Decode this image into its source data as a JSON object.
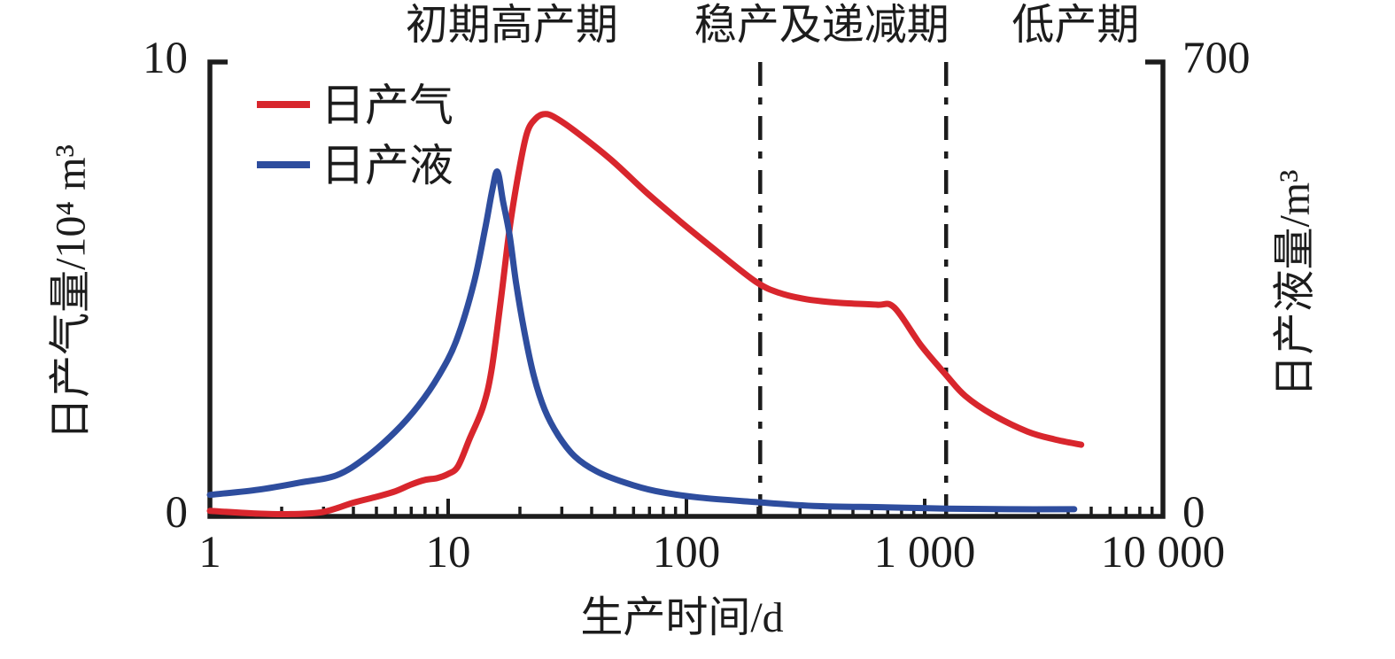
{
  "chart_data": {
    "type": "line",
    "title": "",
    "x_axis": {
      "label": "生产时间/d",
      "scale": "log",
      "range": [
        1,
        10000
      ],
      "tick_values": [
        1,
        10,
        100,
        1000,
        10000
      ],
      "tick_labels": [
        "1",
        "10",
        "100",
        "1 000",
        "10 000"
      ],
      "grid": false
    },
    "y_axis_left": {
      "label": "日产气量/10⁴ m³",
      "range": [
        0,
        10
      ],
      "tick_values": [
        0,
        10
      ],
      "tick_labels": [
        "0",
        "10"
      ]
    },
    "y_axis_right": {
      "label": "日产液量/m³",
      "range": [
        0,
        700
      ],
      "tick_values": [
        0,
        700
      ],
      "tick_labels": [
        "0",
        "700"
      ]
    },
    "phases": [
      {
        "label": "初期高产期",
        "label_t": 18.5
      },
      {
        "label": "稳产及递减期",
        "label_t": 370
      },
      {
        "label": "低产期",
        "label_t": 4300
      }
    ],
    "phase_divider_times": [
      204,
      1230
    ],
    "legend": {
      "position": "top-left-inside",
      "items": [
        {
          "label": "日产气",
          "color": "#d8262d"
        },
        {
          "label": "日产液",
          "color": "#2e4d9e"
        }
      ]
    },
    "series": [
      {
        "name": "日产气",
        "axis": "left",
        "color": "#d8262d",
        "points": [
          [
            1,
            0.12
          ],
          [
            1.6,
            0.06
          ],
          [
            2.2,
            0.05
          ],
          [
            3,
            0.1
          ],
          [
            4,
            0.3
          ],
          [
            5,
            0.43
          ],
          [
            6,
            0.55
          ],
          [
            7,
            0.7
          ],
          [
            8,
            0.8
          ],
          [
            9,
            0.84
          ],
          [
            10,
            0.93
          ],
          [
            11,
            1.1
          ],
          [
            12.3,
            1.7
          ],
          [
            14,
            2.4
          ],
          [
            15.2,
            3.2
          ],
          [
            16.6,
            4.7
          ],
          [
            18.1,
            6.3
          ],
          [
            19.7,
            7.5
          ],
          [
            21.4,
            8.4
          ],
          [
            23.3,
            8.72
          ],
          [
            25.4,
            8.82
          ],
          [
            28,
            8.75
          ],
          [
            34,
            8.45
          ],
          [
            48,
            7.83
          ],
          [
            68,
            7.1
          ],
          [
            96,
            6.43
          ],
          [
            135,
            5.8
          ],
          [
            195,
            5.15
          ],
          [
            245,
            4.9
          ],
          [
            320,
            4.76
          ],
          [
            445,
            4.68
          ],
          [
            630,
            4.64
          ],
          [
            745,
            4.58
          ],
          [
            965,
            3.75
          ],
          [
            1230,
            3.1
          ],
          [
            1480,
            2.64
          ],
          [
            1930,
            2.23
          ],
          [
            2700,
            1.86
          ],
          [
            3500,
            1.69
          ],
          [
            4540,
            1.57
          ]
        ]
      },
      {
        "name": "日产液",
        "axis": "right",
        "color": "#2e4d9e",
        "points": [
          [
            1,
            33
          ],
          [
            1.6,
            41
          ],
          [
            2.4,
            52
          ],
          [
            3.4,
            63
          ],
          [
            4.5,
            90
          ],
          [
            6,
            130
          ],
          [
            7.5,
            170
          ],
          [
            9.1,
            215
          ],
          [
            10.8,
            269
          ],
          [
            12.8,
            357
          ],
          [
            14.3,
            442
          ],
          [
            15.3,
            500
          ],
          [
            16.1,
            529
          ],
          [
            17,
            483
          ],
          [
            18.1,
            432
          ],
          [
            19.3,
            357
          ],
          [
            20.9,
            283
          ],
          [
            22.9,
            215
          ],
          [
            25.4,
            164
          ],
          [
            29,
            124
          ],
          [
            34,
            92
          ],
          [
            42,
            69
          ],
          [
            55,
            52
          ],
          [
            74,
            39
          ],
          [
            113,
            29
          ],
          [
            195,
            22
          ],
          [
            344,
            16
          ],
          [
            686,
            14
          ],
          [
            1230,
            12
          ],
          [
            2260,
            11
          ],
          [
            4240,
            11
          ]
        ]
      }
    ]
  }
}
